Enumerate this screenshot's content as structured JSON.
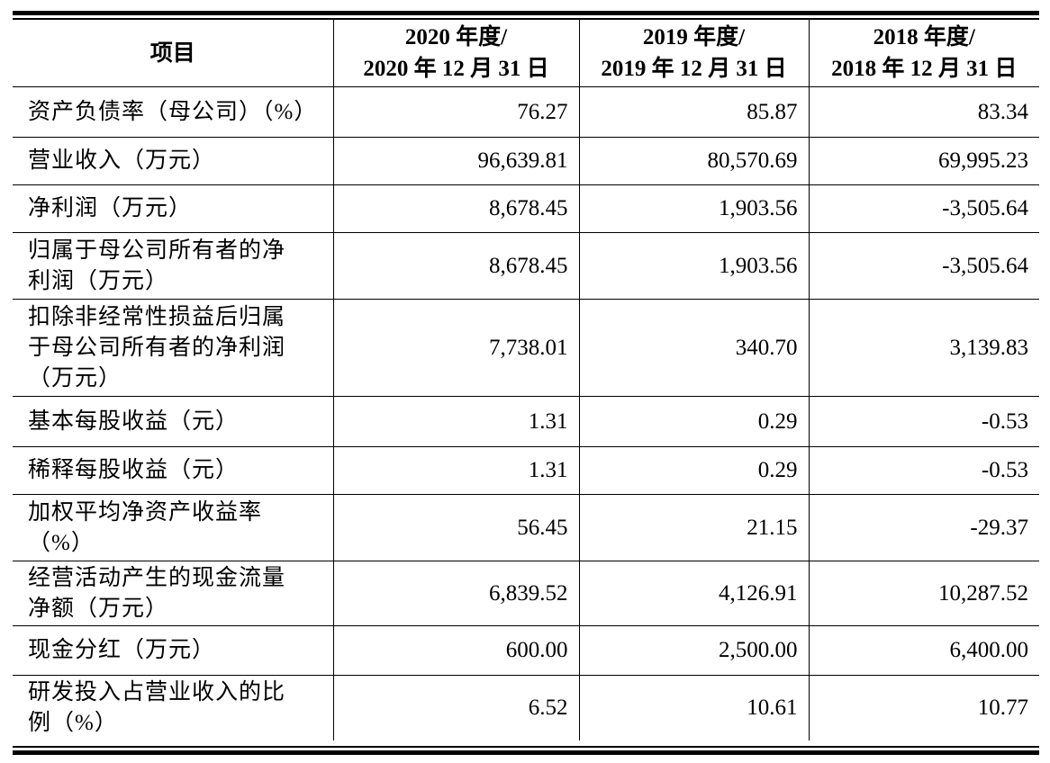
{
  "header": {
    "item_label": "项目",
    "columns": [
      {
        "line1": "2020 年度/",
        "line2": "2020 年 12 月 31 日"
      },
      {
        "line1": "2019 年度/",
        "line2": "2019 年 12 月 31 日"
      },
      {
        "line1": "2018 年度/",
        "line2": "2018 年 12 月 31 日"
      }
    ]
  },
  "rows": [
    {
      "label_lines": [
        "资产负债率（母公司）（%）"
      ],
      "values": [
        "76.27",
        "85.87",
        "83.34"
      ]
    },
    {
      "label_lines": [
        "营业收入（万元）"
      ],
      "values": [
        "96,639.81",
        "80,570.69",
        "69,995.23"
      ]
    },
    {
      "label_lines": [
        "净利润（万元）"
      ],
      "values": [
        "8,678.45",
        "1,903.56",
        "-3,505.64"
      ]
    },
    {
      "label_lines": [
        "归属于母公司所有者的净",
        "利润（万元）"
      ],
      "values": [
        "8,678.45",
        "1,903.56",
        "-3,505.64"
      ]
    },
    {
      "label_lines": [
        "扣除非经常性损益后归属",
        "于母公司所有者的净利润",
        "（万元）"
      ],
      "values": [
        "7,738.01",
        "340.70",
        "3,139.83"
      ]
    },
    {
      "label_lines": [
        "基本每股收益（元）"
      ],
      "values": [
        "1.31",
        "0.29",
        "-0.53"
      ]
    },
    {
      "label_lines": [
        "稀释每股收益（元）"
      ],
      "values": [
        "1.31",
        "0.29",
        "-0.53"
      ]
    },
    {
      "label_lines": [
        "加权平均净资产收益率",
        "（%）"
      ],
      "values": [
        "56.45",
        "21.15",
        "-29.37"
      ]
    },
    {
      "label_lines": [
        "经营活动产生的现金流量",
        "净额（万元）"
      ],
      "values": [
        "6,839.52",
        "4,126.91",
        "10,287.52"
      ]
    },
    {
      "label_lines": [
        "现金分红（万元）"
      ],
      "values": [
        "600.00",
        "2,500.00",
        "6,400.00"
      ]
    },
    {
      "label_lines": [
        "研发投入占营业收入的比",
        "例（%）"
      ],
      "values": [
        "6.52",
        "10.61",
        "10.77"
      ]
    }
  ]
}
